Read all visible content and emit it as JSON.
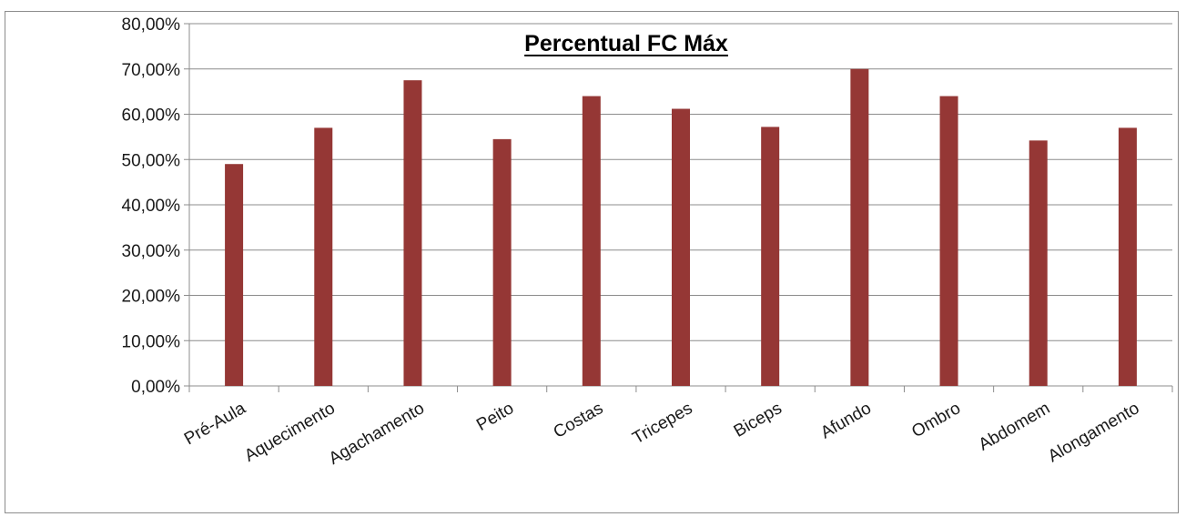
{
  "chart_data": {
    "type": "bar",
    "title": "Percentual FC Máx",
    "xlabel": "",
    "ylabel": "",
    "categories": [
      "Pré-Aula",
      "Aquecimento",
      "Agachamento",
      "Peito",
      "Costas",
      "Tricepes",
      "Biceps",
      "Afundo",
      "Ombro",
      "Abdomem",
      "Alongamento"
    ],
    "values": [
      0.49,
      0.57,
      0.675,
      0.545,
      0.64,
      0.612,
      0.572,
      0.7,
      0.64,
      0.542,
      0.57
    ],
    "ylim": [
      0,
      0.8
    ],
    "yticks": [
      0,
      0.1,
      0.2,
      0.3,
      0.4,
      0.5,
      0.6,
      0.7,
      0.8
    ],
    "ytick_labels": [
      "0,00%",
      "10,00%",
      "20,00%",
      "30,00%",
      "40,00%",
      "50,00%",
      "60,00%",
      "70,00%",
      "80,00%"
    ],
    "grid": true,
    "legend": "none",
    "bar_color": "#953735",
    "gridline_color": "#8c8c8c"
  }
}
